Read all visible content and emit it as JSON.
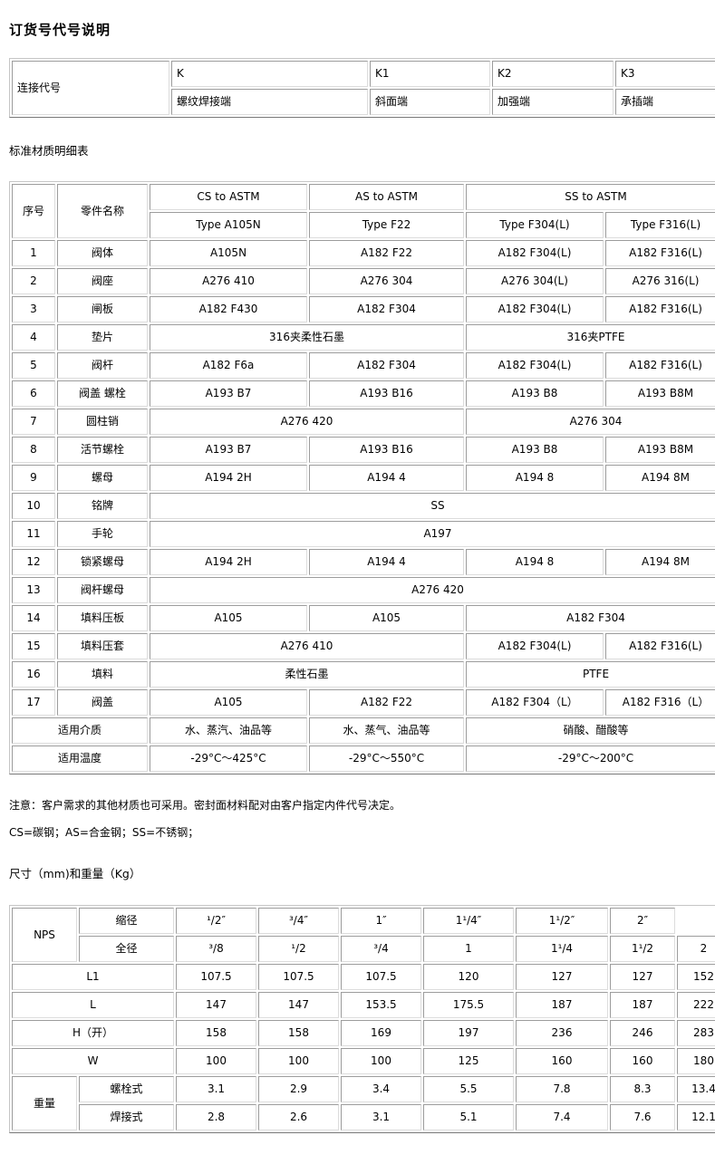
{
  "headings": {
    "order_code_title": "订货号代号说明",
    "material_list_title": "标准材质明细表",
    "dimensions_title": "尺寸（mm)和重量（Kg）"
  },
  "notes": {
    "note1": "注意：客户需求的其他材质也可采用。密封面材料配对由客户指定内件代号决定。",
    "note2": "CS=碳钢；AS=合金钢；SS=不锈钢；"
  },
  "tables": {
    "connection": {
      "rows": [
        [
          {
            "t": "连接代号",
            "rowspan": 2
          },
          {
            "t": "K"
          },
          {
            "t": "K1"
          },
          {
            "t": "K2"
          },
          {
            "t": "K3"
          }
        ],
        [
          {
            "t": "螺纹焊接端"
          },
          {
            "t": "斜面端"
          },
          {
            "t": "加强端"
          },
          {
            "t": "承插端"
          }
        ]
      ]
    },
    "material": {
      "rows": [
        [
          {
            "t": "序号",
            "rowspan": 2
          },
          {
            "t": "零件名称",
            "rowspan": 2
          },
          {
            "t": "CS to ASTM"
          },
          {
            "t": "AS to ASTM"
          },
          {
            "t": "SS to ASTM",
            "colspan": 2
          }
        ],
        [
          {
            "t": "Type A105N"
          },
          {
            "t": "Type F22"
          },
          {
            "t": "Type F304(L)"
          },
          {
            "t": "Type F316(L)"
          }
        ],
        [
          {
            "t": "1"
          },
          {
            "t": "阀体"
          },
          {
            "t": "A105N"
          },
          {
            "t": "A182 F22"
          },
          {
            "t": "A182 F304(L)"
          },
          {
            "t": "A182 F316(L)"
          }
        ],
        [
          {
            "t": "2"
          },
          {
            "t": "阀座"
          },
          {
            "t": "A276 410"
          },
          {
            "t": "A276 304"
          },
          {
            "t": "A276 304(L)"
          },
          {
            "t": "A276 316(L)"
          }
        ],
        [
          {
            "t": "3"
          },
          {
            "t": "闸板"
          },
          {
            "t": "A182 F430"
          },
          {
            "t": "A182 F304"
          },
          {
            "t": "A182 F304(L)"
          },
          {
            "t": "A182 F316(L)"
          }
        ],
        [
          {
            "t": "4"
          },
          {
            "t": "垫片"
          },
          {
            "t": "316夹柔性石墨",
            "colspan": 2
          },
          {
            "t": "316夹PTFE",
            "colspan": 2
          }
        ],
        [
          {
            "t": "5"
          },
          {
            "t": "阀杆"
          },
          {
            "t": "A182 F6a"
          },
          {
            "t": "A182 F304"
          },
          {
            "t": "A182 F304(L)"
          },
          {
            "t": "A182 F316(L)"
          }
        ],
        [
          {
            "t": "6"
          },
          {
            "t": "阀盖 螺栓"
          },
          {
            "t": "A193 B7"
          },
          {
            "t": "A193 B16"
          },
          {
            "t": "A193 B8"
          },
          {
            "t": "A193 B8M"
          }
        ],
        [
          {
            "t": "7"
          },
          {
            "t": "圆柱销"
          },
          {
            "t": "A276 420",
            "colspan": 2
          },
          {
            "t": "A276 304",
            "colspan": 2
          }
        ],
        [
          {
            "t": "8"
          },
          {
            "t": "活节螺栓"
          },
          {
            "t": "A193 B7"
          },
          {
            "t": "A193 B16"
          },
          {
            "t": "A193 B8"
          },
          {
            "t": "A193 B8M"
          }
        ],
        [
          {
            "t": "9"
          },
          {
            "t": "螺母"
          },
          {
            "t": "A194 2H"
          },
          {
            "t": "A194 4"
          },
          {
            "t": "A194 8"
          },
          {
            "t": "A194 8M"
          }
        ],
        [
          {
            "t": "10"
          },
          {
            "t": "铭牌"
          },
          {
            "t": "SS",
            "colspan": 4
          }
        ],
        [
          {
            "t": "11"
          },
          {
            "t": "手轮"
          },
          {
            "t": "A197",
            "colspan": 4
          }
        ],
        [
          {
            "t": "12"
          },
          {
            "t": "锁紧螺母"
          },
          {
            "t": "A194 2H"
          },
          {
            "t": "A194 4"
          },
          {
            "t": "A194 8"
          },
          {
            "t": "A194 8M"
          }
        ],
        [
          {
            "t": "13"
          },
          {
            "t": "阀杆螺母"
          },
          {
            "t": "A276 420",
            "colspan": 4
          }
        ],
        [
          {
            "t": "14"
          },
          {
            "t": "填料压板"
          },
          {
            "t": "A105"
          },
          {
            "t": "A105"
          },
          {
            "t": "A182 F304",
            "colspan": 2
          }
        ],
        [
          {
            "t": "15"
          },
          {
            "t": "填料压套"
          },
          {
            "t": "A276 410",
            "colspan": 2
          },
          {
            "t": "A182 F304(L)"
          },
          {
            "t": "A182 F316(L)"
          }
        ],
        [
          {
            "t": "16"
          },
          {
            "t": "填料"
          },
          {
            "t": "柔性石墨",
            "colspan": 2
          },
          {
            "t": "PTFE",
            "colspan": 2
          }
        ],
        [
          {
            "t": "17"
          },
          {
            "t": "阀盖"
          },
          {
            "t": "A105"
          },
          {
            "t": "A182 F22"
          },
          {
            "t": "A182 F304（L）"
          },
          {
            "t": "A182 F316（L）"
          }
        ],
        [
          {
            "t": "适用介质",
            "colspan": 2
          },
          {
            "t": "水、蒸汽、油品等"
          },
          {
            "t": "水、蒸气、油品等"
          },
          {
            "t": "硝酸、醋酸等",
            "colspan": 2
          }
        ],
        [
          {
            "t": "适用温度",
            "colspan": 2
          },
          {
            "t": "-29°C～425°C"
          },
          {
            "t": "-29°C～550°C"
          },
          {
            "t": "-29°C～200°C",
            "colspan": 2
          }
        ]
      ]
    },
    "dimensions": {
      "rows": [
        [
          {
            "t": "NPS",
            "rowspan": 2
          },
          {
            "t": "缩径"
          },
          {
            "t": "¹/2″"
          },
          {
            "t": "³/4″"
          },
          {
            "t": "1″"
          },
          {
            "t": "1¹/4″"
          },
          {
            "t": "1¹/2″"
          },
          {
            "t": "2″"
          }
        ],
        [
          {
            "t": "全径"
          },
          {
            "t": "³/8"
          },
          {
            "t": "¹/2"
          },
          {
            "t": "³/4"
          },
          {
            "t": "1"
          },
          {
            "t": "1¹/4"
          },
          {
            "t": "1¹/2"
          },
          {
            "t": "2"
          }
        ],
        [
          {
            "t": "L1",
            "colspan": 2
          },
          {
            "t": "107.5"
          },
          {
            "t": "107.5"
          },
          {
            "t": "107.5"
          },
          {
            "t": "120"
          },
          {
            "t": "127"
          },
          {
            "t": "127"
          },
          {
            "t": "152"
          }
        ],
        [
          {
            "t": "L",
            "colspan": 2
          },
          {
            "t": "147"
          },
          {
            "t": "147"
          },
          {
            "t": "153.5"
          },
          {
            "t": "175.5"
          },
          {
            "t": "187"
          },
          {
            "t": "187"
          },
          {
            "t": "222"
          }
        ],
        [
          {
            "t": "H（开）",
            "colspan": 2
          },
          {
            "t": "158"
          },
          {
            "t": "158"
          },
          {
            "t": "169"
          },
          {
            "t": "197"
          },
          {
            "t": "236"
          },
          {
            "t": "246"
          },
          {
            "t": "283"
          }
        ],
        [
          {
            "t": "W",
            "colspan": 2
          },
          {
            "t": "100"
          },
          {
            "t": "100"
          },
          {
            "t": "100"
          },
          {
            "t": "125"
          },
          {
            "t": "160"
          },
          {
            "t": "160"
          },
          {
            "t": "180"
          }
        ],
        [
          {
            "t": "重量",
            "rowspan": 2
          },
          {
            "t": "螺栓式"
          },
          {
            "t": "3.1"
          },
          {
            "t": "2.9"
          },
          {
            "t": "3.4"
          },
          {
            "t": "5.5"
          },
          {
            "t": "7.8"
          },
          {
            "t": "8.3"
          },
          {
            "t": "13.4"
          }
        ],
        [
          {
            "t": "焊接式"
          },
          {
            "t": "2.8"
          },
          {
            "t": "2.6"
          },
          {
            "t": "3.1"
          },
          {
            "t": "5.1"
          },
          {
            "t": "7.4"
          },
          {
            "t": "7.6"
          },
          {
            "t": "12.1"
          }
        ]
      ]
    }
  }
}
